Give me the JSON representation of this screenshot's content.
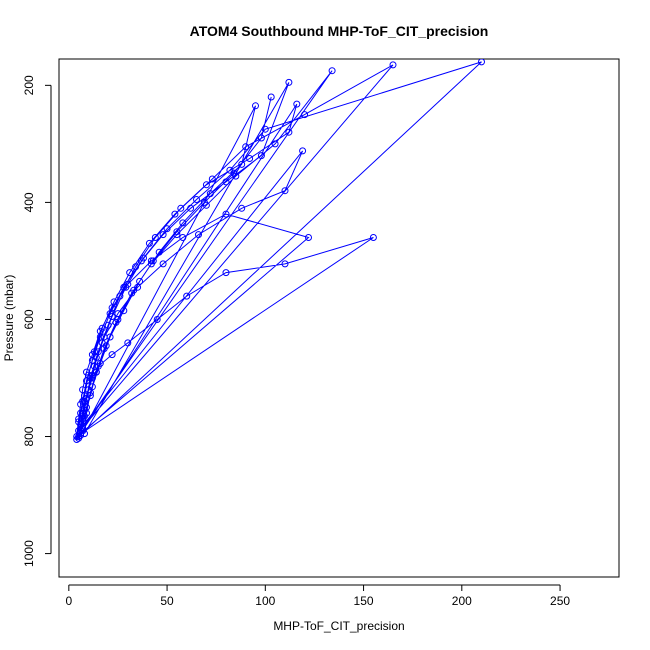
{
  "chart_data": {
    "type": "scatter",
    "title": "ATOM4 Southbound MHP-ToF_CIT_precision",
    "xlabel": "MHP-ToF_CIT_precision",
    "ylabel": "Pressure (mbar)",
    "xlim": [
      -5,
      280
    ],
    "ylim": [
      1040,
      155
    ],
    "y_reversed": true,
    "grid": false,
    "legend": "none",
    "x_ticks": [
      0,
      50,
      100,
      150,
      200,
      250
    ],
    "y_ticks": [
      200,
      400,
      600,
      800,
      1000
    ],
    "series": [
      {
        "color": "#0000ff",
        "marker": "open-circle",
        "connect": "lines",
        "points": [
          [
            5,
            803
          ],
          [
            6,
            780
          ],
          [
            7,
            760
          ],
          [
            8,
            740
          ],
          [
            10,
            720
          ],
          [
            12,
            700
          ],
          [
            15,
            680
          ],
          [
            22,
            660
          ],
          [
            30,
            640
          ],
          [
            45,
            600
          ],
          [
            60,
            560
          ],
          [
            80,
            520
          ],
          [
            110,
            505
          ],
          [
            155,
            460
          ],
          [
            4,
            800
          ],
          [
            5,
            770
          ],
          [
            6,
            745
          ],
          [
            7,
            720
          ],
          [
            9,
            690
          ],
          [
            12,
            660
          ],
          [
            16,
            620
          ],
          [
            22,
            580
          ],
          [
            30,
            540
          ],
          [
            42,
            500
          ],
          [
            58,
            460
          ],
          [
            80,
            420
          ],
          [
            122,
            460
          ],
          [
            6,
            795
          ],
          [
            7,
            765
          ],
          [
            9,
            735
          ],
          [
            11,
            700
          ],
          [
            14,
            665
          ],
          [
            18,
            630
          ],
          [
            25,
            590
          ],
          [
            35,
            545
          ],
          [
            48,
            505
          ],
          [
            66,
            455
          ],
          [
            88,
            410
          ],
          [
            110,
            380
          ],
          [
            119,
            312
          ],
          [
            5,
            790
          ],
          [
            6,
            760
          ],
          [
            8,
            730
          ],
          [
            10,
            695
          ],
          [
            13,
            655
          ],
          [
            17,
            615
          ],
          [
            23,
            570
          ],
          [
            31,
            520
          ],
          [
            41,
            470
          ],
          [
            54,
            420
          ],
          [
            70,
            370
          ],
          [
            92,
            325
          ],
          [
            112,
            280
          ],
          [
            116,
            232
          ],
          [
            4,
            805
          ],
          [
            5,
            775
          ],
          [
            7,
            740
          ],
          [
            9,
            705
          ],
          [
            12,
            670
          ],
          [
            16,
            630
          ],
          [
            21,
            590
          ],
          [
            28,
            545
          ],
          [
            37,
            500
          ],
          [
            48,
            455
          ],
          [
            62,
            410
          ],
          [
            80,
            365
          ],
          [
            98,
            320
          ],
          [
            112,
            195
          ],
          [
            8,
            795
          ],
          [
            9,
            760
          ],
          [
            11,
            725
          ],
          [
            14,
            690
          ],
          [
            18,
            650
          ],
          [
            24,
            605
          ],
          [
            32,
            555
          ],
          [
            42,
            505
          ],
          [
            55,
            455
          ],
          [
            70,
            405
          ],
          [
            85,
            355
          ],
          [
            105,
            300
          ],
          [
            134,
            175
          ],
          [
            6,
            790
          ],
          [
            8,
            755
          ],
          [
            10,
            720
          ],
          [
            13,
            680
          ],
          [
            17,
            640
          ],
          [
            22,
            595
          ],
          [
            29,
            545
          ],
          [
            38,
            495
          ],
          [
            50,
            445
          ],
          [
            65,
            395
          ],
          [
            82,
            345
          ],
          [
            100,
            275
          ],
          [
            210,
            160
          ],
          [
            5,
            800
          ],
          [
            7,
            770
          ],
          [
            9,
            735
          ],
          [
            12,
            695
          ],
          [
            15,
            655
          ],
          [
            20,
            610
          ],
          [
            26,
            560
          ],
          [
            34,
            510
          ],
          [
            44,
            460
          ],
          [
            57,
            410
          ],
          [
            73,
            360
          ],
          [
            90,
            305
          ],
          [
            120,
            250
          ],
          [
            165,
            165
          ],
          [
            7,
            785
          ],
          [
            9,
            750
          ],
          [
            12,
            715
          ],
          [
            16,
            675
          ],
          [
            21,
            630
          ],
          [
            28,
            585
          ],
          [
            36,
            535
          ],
          [
            46,
            485
          ],
          [
            58,
            435
          ],
          [
            72,
            385
          ],
          [
            88,
            335
          ],
          [
            95,
            235
          ],
          [
            6,
            798
          ],
          [
            8,
            765
          ],
          [
            11,
            730
          ],
          [
            14,
            690
          ],
          [
            19,
            645
          ],
          [
            25,
            600
          ],
          [
            33,
            550
          ],
          [
            43,
            500
          ],
          [
            55,
            450
          ],
          [
            69,
            400
          ],
          [
            84,
            350
          ],
          [
            98,
            290
          ],
          [
            103,
            220
          ]
        ]
      }
    ]
  }
}
